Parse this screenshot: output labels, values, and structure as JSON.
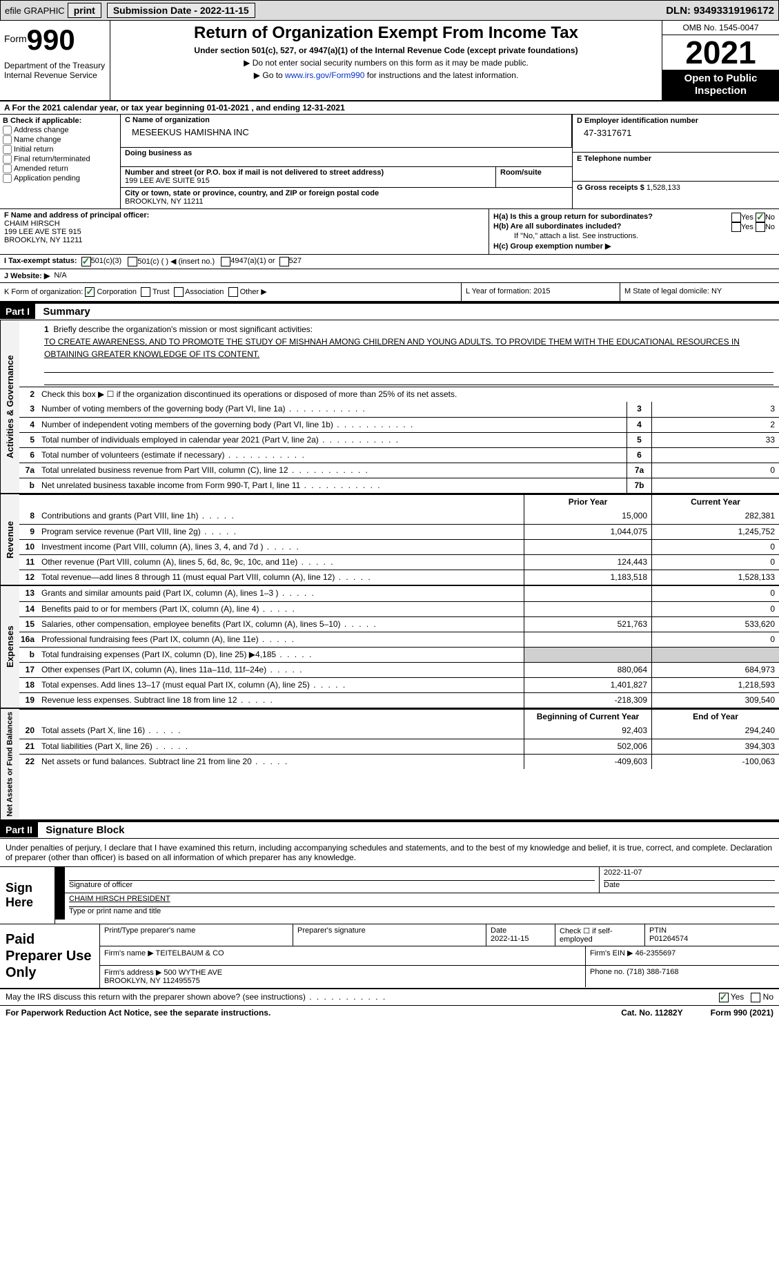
{
  "topbar": {
    "efile": "efile GRAPHIC",
    "print": "print",
    "submission": "Submission Date - 2022-11-15",
    "dln": "DLN: 93493319196172"
  },
  "header": {
    "form_prefix": "Form",
    "form_number": "990",
    "dept": "Department of the Treasury\nInternal Revenue Service",
    "title": "Return of Organization Exempt From Income Tax",
    "subtitle": "Under section 501(c), 527, or 4947(a)(1) of the Internal Revenue Code (except private foundations)",
    "note1": "▶ Do not enter social security numbers on this form as it may be made public.",
    "note2_pre": "▶ Go to ",
    "note2_link": "www.irs.gov/Form990",
    "note2_post": " for instructions and the latest information.",
    "omb": "OMB No. 1545-0047",
    "year": "2021",
    "inspection": "Open to Public Inspection"
  },
  "row_a": "A For the 2021 calendar year, or tax year beginning 01-01-2021   , and ending 12-31-2021",
  "section_b": {
    "b_label": "B Check if applicable:",
    "checks": [
      "Address change",
      "Name change",
      "Initial return",
      "Final return/terminated",
      "Amended return",
      "Application pending"
    ],
    "c_label": "C Name of organization",
    "org_name": "MESEEKUS HAMISHNA INC",
    "dba_label": "Doing business as",
    "dba": "",
    "addr_label": "Number and street (or P.O. box if mail is not delivered to street address)",
    "addr": "199 LEE AVE SUITE 915",
    "room_label": "Room/suite",
    "room": "",
    "city_label": "City or town, state or province, country, and ZIP or foreign postal code",
    "city": "BROOKLYN, NY  11211",
    "d_label": "D Employer identification number",
    "ein": "47-3317671",
    "e_label": "E Telephone number",
    "tel": "",
    "g_label": "G Gross receipts $",
    "gross": "1,528,133"
  },
  "section_f": {
    "f_label": "F Name and address of principal officer:",
    "officer": "CHAIM HIRSCH\n199 LEE AVE STE 915\nBROOKLYN, NY  11211",
    "ha_label": "H(a)  Is this a group return for subordinates?",
    "ha_no": true,
    "hb_label": "H(b)  Are all subordinates included?",
    "hb_note": "If \"No,\" attach a list. See instructions.",
    "hc_label": "H(c)  Group exemption number ▶"
  },
  "row_i": {
    "label": "I  Tax-exempt status:",
    "opt1": "501(c)(3)",
    "opt2": "501(c) (  ) ◀ (insert no.)",
    "opt3": "4947(a)(1) or",
    "opt4": "527"
  },
  "row_j": {
    "label": "J  Website: ▶",
    "val": "N/A"
  },
  "row_k": {
    "label": "K Form of organization:",
    "opts": [
      "Corporation",
      "Trust",
      "Association",
      "Other ▶"
    ]
  },
  "row_l": {
    "label": "L Year of formation:",
    "val": "2015"
  },
  "row_m": {
    "label": "M State of legal domicile:",
    "val": "NY"
  },
  "part1": {
    "num": "Part I",
    "title": "Summary"
  },
  "summary": {
    "vtabs": [
      "Activities & Governance",
      "Revenue",
      "Expenses",
      "Net Assets or Fund Balances"
    ],
    "line1_label": "Briefly describe the organization's mission or most significant activities:",
    "line1_val": "TO CREATE AWARENESS, AND TO PROMOTE THE STUDY OF MISHNAH AMONG CHILDREN AND YOUNG ADULTS. TO PROVIDE THEM WITH THE EDUCATIONAL RESOURCES IN OBTAINING GREATER KNOWLEDGE OF ITS CONTENT.",
    "line2": "Check this box ▶ ☐ if the organization discontinued its operations or disposed of more than 25% of its net assets.",
    "lines_single": [
      {
        "n": "3",
        "t": "Number of voting members of the governing body (Part VI, line 1a)",
        "box": "3",
        "v": "3"
      },
      {
        "n": "4",
        "t": "Number of independent voting members of the governing body (Part VI, line 1b)",
        "box": "4",
        "v": "2"
      },
      {
        "n": "5",
        "t": "Total number of individuals employed in calendar year 2021 (Part V, line 2a)",
        "box": "5",
        "v": "33"
      },
      {
        "n": "6",
        "t": "Total number of volunteers (estimate if necessary)",
        "box": "6",
        "v": ""
      },
      {
        "n": "7a",
        "t": "Total unrelated business revenue from Part VIII, column (C), line 12",
        "box": "7a",
        "v": "0"
      },
      {
        "n": "b",
        "t": "Net unrelated business taxable income from Form 990-T, Part I, line 11",
        "box": "7b",
        "v": ""
      }
    ],
    "col_hdr1": "Prior Year",
    "col_hdr2": "Current Year",
    "revenue": [
      {
        "n": "8",
        "t": "Contributions and grants (Part VIII, line 1h)",
        "p": "15,000",
        "c": "282,381"
      },
      {
        "n": "9",
        "t": "Program service revenue (Part VIII, line 2g)",
        "p": "1,044,075",
        "c": "1,245,752"
      },
      {
        "n": "10",
        "t": "Investment income (Part VIII, column (A), lines 3, 4, and 7d )",
        "p": "",
        "c": "0"
      },
      {
        "n": "11",
        "t": "Other revenue (Part VIII, column (A), lines 5, 6d, 8c, 9c, 10c, and 11e)",
        "p": "124,443",
        "c": "0"
      },
      {
        "n": "12",
        "t": "Total revenue—add lines 8 through 11 (must equal Part VIII, column (A), line 12)",
        "p": "1,183,518",
        "c": "1,528,133"
      }
    ],
    "expenses": [
      {
        "n": "13",
        "t": "Grants and similar amounts paid (Part IX, column (A), lines 1–3 )",
        "p": "",
        "c": "0"
      },
      {
        "n": "14",
        "t": "Benefits paid to or for members (Part IX, column (A), line 4)",
        "p": "",
        "c": "0"
      },
      {
        "n": "15",
        "t": "Salaries, other compensation, employee benefits (Part IX, column (A), lines 5–10)",
        "p": "521,763",
        "c": "533,620"
      },
      {
        "n": "16a",
        "t": "Professional fundraising fees (Part IX, column (A), line 11e)",
        "p": "",
        "c": "0"
      },
      {
        "n": "b",
        "t": "Total fundraising expenses (Part IX, column (D), line 25) ▶4,185",
        "p": "grey",
        "c": "grey"
      },
      {
        "n": "17",
        "t": "Other expenses (Part IX, column (A), lines 11a–11d, 11f–24e)",
        "p": "880,064",
        "c": "684,973"
      },
      {
        "n": "18",
        "t": "Total expenses. Add lines 13–17 (must equal Part IX, column (A), line 25)",
        "p": "1,401,827",
        "c": "1,218,593"
      },
      {
        "n": "19",
        "t": "Revenue less expenses. Subtract line 18 from line 12",
        "p": "-218,309",
        "c": "309,540"
      }
    ],
    "na_hdr1": "Beginning of Current Year",
    "na_hdr2": "End of Year",
    "netassets": [
      {
        "n": "20",
        "t": "Total assets (Part X, line 16)",
        "p": "92,403",
        "c": "294,240"
      },
      {
        "n": "21",
        "t": "Total liabilities (Part X, line 26)",
        "p": "502,006",
        "c": "394,303"
      },
      {
        "n": "22",
        "t": "Net assets or fund balances. Subtract line 21 from line 20",
        "p": "-409,603",
        "c": "-100,063"
      }
    ]
  },
  "part2": {
    "num": "Part II",
    "title": "Signature Block"
  },
  "sig": {
    "intro": "Under penalties of perjury, I declare that I have examined this return, including accompanying schedules and statements, and to the best of my knowledge and belief, it is true, correct, and complete. Declaration of preparer (other than officer) is based on all information of which preparer has any knowledge.",
    "sign_here": "Sign Here",
    "sig_label": "Signature of officer",
    "date_label": "Date",
    "sig_date": "2022-11-07",
    "name_label": "Type or print name and title",
    "name_val": "CHAIM HIRSCH  PRESIDENT"
  },
  "paid": {
    "title": "Paid Preparer Use Only",
    "print_label": "Print/Type preparer's name",
    "prep_sig_label": "Preparer's signature",
    "date_label": "Date",
    "date_val": "2022-11-15",
    "check_label": "Check ☐ if self-employed",
    "ptin_label": "PTIN",
    "ptin_val": "P01264574",
    "firm_name_label": "Firm's name    ▶",
    "firm_name": "TEITELBAUM & CO",
    "firm_ein_label": "Firm's EIN ▶",
    "firm_ein": "46-2355697",
    "firm_addr_label": "Firm's address ▶",
    "firm_addr": "500 WYTHE AVE\nBROOKLYN, NY  112495575",
    "phone_label": "Phone no.",
    "phone": "(718) 388-7168"
  },
  "discuss": {
    "text": "May the IRS discuss this return with the preparer shown above? (see instructions)",
    "yes": "Yes",
    "no": "No"
  },
  "footer": {
    "left": "For Paperwork Reduction Act Notice, see the separate instructions.",
    "mid": "Cat. No. 11282Y",
    "right": "Form 990 (2021)"
  }
}
